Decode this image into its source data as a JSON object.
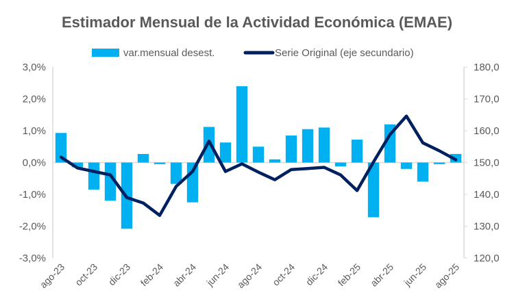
{
  "chart_data": {
    "type": "bar+line",
    "title": "Estimador Mensual de la Actividad Económica (EMAE)",
    "categories": [
      "ago-23",
      "sep-23",
      "oct-23",
      "nov-23",
      "dic-23",
      "ene-24",
      "feb-24",
      "mar-24",
      "abr-24",
      "may-24",
      "jun-24",
      "jul-24",
      "ago-24",
      "sep-24",
      "oct-24",
      "nov-24",
      "dic-24",
      "ene-25",
      "feb-25",
      "mar-25",
      "abr-25",
      "may-25",
      "jun-25",
      "jul-25",
      "ago-25"
    ],
    "x_tick_labels": [
      "ago-23",
      "oct-23",
      "dic-23",
      "feb-24",
      "abr-24",
      "jun-24",
      "ago-24",
      "oct-24",
      "dic-24",
      "feb-25",
      "abr-25",
      "jun-25",
      "ago-25"
    ],
    "series": [
      {
        "name": "var.mensual desest.",
        "type": "bar",
        "axis": "primary",
        "color": "#00B0F0",
        "values": [
          0.93,
          -0.15,
          -0.85,
          -1.2,
          -2.08,
          0.27,
          -0.05,
          -0.67,
          -1.25,
          1.12,
          0.63,
          2.4,
          0.5,
          0.1,
          0.85,
          1.05,
          1.1,
          -0.12,
          0.72,
          -1.72,
          1.2,
          -0.2,
          -0.6,
          -0.05,
          0.27
        ]
      },
      {
        "name": "Serie Original (eje secundario)",
        "type": "line",
        "axis": "secondary",
        "color": "#002060",
        "values": [
          151.7,
          148.3,
          147.2,
          146.1,
          139.0,
          137.3,
          133.4,
          142.5,
          147.2,
          156.7,
          147.2,
          149.6,
          147.0,
          144.6,
          147.8,
          148.1,
          148.5,
          146.1,
          141.2,
          150.2,
          158.8,
          164.6,
          156.2,
          153.7,
          150.9
        ]
      }
    ],
    "y_primary": {
      "min": -3.0,
      "max": 3.0,
      "step": 1.0,
      "tick_labels": [
        "3,0%",
        "2,0%",
        "1,0%",
        "0,0%",
        "-1,0%",
        "-2,0%",
        "-3,0%"
      ]
    },
    "y_secondary": {
      "min": 120,
      "max": 180,
      "step": 10,
      "tick_labels": [
        "180,0",
        "170,0",
        "160,0",
        "150,0",
        "140,0",
        "130,0",
        "120,0"
      ]
    },
    "xlabel": "",
    "ylabel": "",
    "grid": false,
    "legend_position": "top-center"
  }
}
